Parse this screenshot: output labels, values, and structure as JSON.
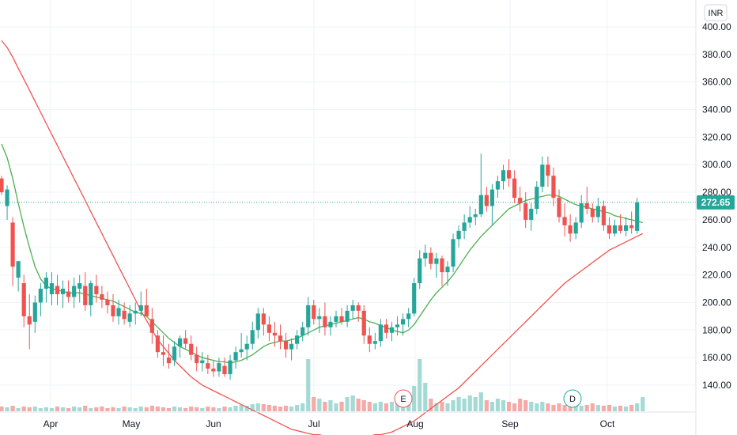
{
  "currency_label": "INR",
  "colors": {
    "up": "#26a69a",
    "down": "#ef5350",
    "vol_up": "#a4dad5",
    "vol_down": "#f7a9a7",
    "ma_fast": "#4caf50",
    "ma_slow": "#ef5350",
    "price_tag": "#26a69a"
  },
  "chart_data": {
    "type": "candlestick",
    "ylim": [
      120,
      410
    ],
    "y_ticks": [
      "400.00",
      "380.00",
      "360.00",
      "340.00",
      "320.00",
      "300.00",
      "280.00",
      "260.00",
      "240.00",
      "220.00",
      "200.00",
      "180.00",
      "160.00",
      "140.00"
    ],
    "x_ticks": [
      "Apr",
      "May",
      "Jun",
      "Jul",
      "Aug",
      "Sep",
      "Oct"
    ],
    "last_price": "272.65",
    "events": [
      {
        "label": "E",
        "date": "Jul 27"
      },
      {
        "label": "D",
        "date": "Sep 20"
      }
    ],
    "candles_ohlc": [
      [
        290,
        292,
        278,
        280
      ],
      [
        270,
        285,
        260,
        282
      ],
      [
        258,
        262,
        212,
        226
      ],
      [
        218,
        230,
        208,
        230
      ],
      [
        214,
        220,
        182,
        190
      ],
      [
        190,
        206,
        166,
        184
      ],
      [
        186,
        205,
        178,
        200
      ],
      [
        200,
        214,
        190,
        210
      ],
      [
        210,
        222,
        200,
        218
      ],
      [
        206,
        222,
        198,
        214
      ],
      [
        212,
        220,
        198,
        206
      ],
      [
        206,
        216,
        196,
        210
      ],
      [
        208,
        216,
        200,
        204
      ],
      [
        204,
        218,
        196,
        212
      ],
      [
        210,
        220,
        200,
        214
      ],
      [
        212,
        222,
        194,
        198
      ],
      [
        198,
        216,
        190,
        214
      ],
      [
        212,
        220,
        200,
        206
      ],
      [
        206,
        212,
        196,
        202
      ],
      [
        202,
        208,
        192,
        198
      ],
      [
        198,
        206,
        186,
        190
      ],
      [
        190,
        202,
        184,
        196
      ],
      [
        194,
        200,
        184,
        188
      ],
      [
        186,
        198,
        182,
        192
      ],
      [
        192,
        200,
        184,
        194
      ],
      [
        194,
        208,
        190,
        198
      ],
      [
        198,
        210,
        192,
        190
      ],
      [
        188,
        196,
        170,
        178
      ],
      [
        176,
        180,
        160,
        164
      ],
      [
        164,
        176,
        154,
        162
      ],
      [
        160,
        170,
        152,
        156
      ],
      [
        158,
        172,
        154,
        168
      ],
      [
        168,
        176,
        160,
        174
      ],
      [
        174,
        180,
        166,
        170
      ],
      [
        170,
        176,
        158,
        162
      ],
      [
        162,
        168,
        150,
        156
      ],
      [
        156,
        164,
        150,
        158
      ],
      [
        156,
        162,
        148,
        152
      ],
      [
        152,
        158,
        146,
        150
      ],
      [
        150,
        160,
        146,
        156
      ],
      [
        154,
        160,
        146,
        148
      ],
      [
        148,
        162,
        144,
        158
      ],
      [
        158,
        168,
        152,
        164
      ],
      [
        164,
        178,
        160,
        166
      ],
      [
        166,
        176,
        158,
        170
      ],
      [
        170,
        186,
        166,
        180
      ],
      [
        180,
        196,
        174,
        192
      ],
      [
        192,
        196,
        176,
        184
      ],
      [
        184,
        190,
        172,
        178
      ],
      [
        178,
        186,
        168,
        176
      ],
      [
        176,
        184,
        166,
        172
      ],
      [
        172,
        178,
        160,
        166
      ],
      [
        166,
        174,
        158,
        170
      ],
      [
        170,
        180,
        166,
        176
      ],
      [
        176,
        186,
        172,
        182
      ],
      [
        182,
        204,
        176,
        198
      ],
      [
        198,
        202,
        184,
        188
      ],
      [
        188,
        196,
        178,
        190
      ],
      [
        190,
        200,
        176,
        182
      ],
      [
        182,
        190,
        176,
        186
      ],
      [
        186,
        194,
        182,
        190
      ],
      [
        190,
        196,
        184,
        186
      ],
      [
        186,
        198,
        182,
        194
      ],
      [
        194,
        202,
        188,
        198
      ],
      [
        198,
        200,
        186,
        194
      ],
      [
        194,
        198,
        170,
        176
      ],
      [
        176,
        182,
        164,
        170
      ],
      [
        170,
        178,
        166,
        172
      ],
      [
        172,
        188,
        168,
        184
      ],
      [
        184,
        188,
        174,
        178
      ],
      [
        178,
        186,
        172,
        182
      ],
      [
        182,
        190,
        176,
        184
      ],
      [
        184,
        192,
        176,
        188
      ],
      [
        188,
        196,
        182,
        192
      ],
      [
        192,
        218,
        190,
        214
      ],
      [
        214,
        238,
        210,
        232
      ],
      [
        232,
        242,
        226,
        236
      ],
      [
        236,
        240,
        224,
        228
      ],
      [
        228,
        236,
        218,
        232
      ],
      [
        232,
        234,
        212,
        222
      ],
      [
        222,
        230,
        212,
        226
      ],
      [
        226,
        250,
        222,
        246
      ],
      [
        246,
        256,
        240,
        252
      ],
      [
        252,
        264,
        246,
        258
      ],
      [
        258,
        270,
        254,
        262
      ],
      [
        262,
        268,
        256,
        264
      ],
      [
        264,
        308,
        262,
        278
      ],
      [
        278,
        284,
        266,
        270
      ],
      [
        270,
        286,
        256,
        282
      ],
      [
        282,
        292,
        276,
        288
      ],
      [
        288,
        300,
        282,
        296
      ],
      [
        296,
        304,
        284,
        290
      ],
      [
        290,
        296,
        272,
        276
      ],
      [
        276,
        284,
        266,
        272
      ],
      [
        272,
        280,
        254,
        260
      ],
      [
        260,
        272,
        252,
        268
      ],
      [
        268,
        288,
        264,
        284
      ],
      [
        284,
        306,
        280,
        300
      ],
      [
        300,
        306,
        284,
        292
      ],
      [
        292,
        298,
        270,
        276
      ],
      [
        276,
        282,
        258,
        262
      ],
      [
        262,
        272,
        248,
        256
      ],
      [
        256,
        264,
        244,
        250
      ],
      [
        250,
        262,
        246,
        258
      ],
      [
        258,
        278,
        254,
        272
      ],
      [
        272,
        284,
        264,
        268
      ],
      [
        268,
        272,
        258,
        262
      ],
      [
        262,
        276,
        258,
        270
      ],
      [
        270,
        274,
        252,
        256
      ],
      [
        256,
        262,
        246,
        250
      ],
      [
        250,
        260,
        248,
        256
      ],
      [
        256,
        264,
        250,
        252
      ],
      [
        252,
        262,
        248,
        256
      ],
      [
        256,
        266,
        250,
        254
      ],
      [
        252,
        276,
        250,
        272.65
      ]
    ],
    "ma_fast": [
      315,
      305,
      290,
      272,
      255,
      240,
      226,
      217,
      212,
      210,
      209,
      208,
      207,
      207,
      207,
      206,
      205,
      204,
      203,
      202,
      201,
      199,
      197,
      195,
      193,
      192,
      190,
      186,
      182,
      178,
      174,
      171,
      168,
      166,
      164,
      162,
      160,
      159,
      158,
      157,
      157,
      156,
      157,
      158,
      160,
      162,
      165,
      168,
      170,
      171,
      172,
      172,
      173,
      174,
      176,
      178,
      180,
      182,
      183,
      184,
      185,
      186,
      187,
      188,
      189,
      188,
      186,
      185,
      183,
      182,
      180,
      179,
      178,
      180,
      184,
      190,
      196,
      202,
      207,
      211,
      215,
      220,
      226,
      232,
      238,
      243,
      248,
      252,
      256,
      260,
      264,
      268,
      270,
      272,
      274,
      275,
      276,
      277,
      278,
      278,
      277,
      275,
      273,
      271,
      270,
      269,
      268,
      267,
      266,
      265,
      263,
      262,
      261,
      260,
      259,
      258
    ],
    "ma_slow": [
      390,
      385,
      378,
      370,
      362,
      354,
      346,
      338,
      330,
      322,
      314,
      306,
      298,
      290,
      282,
      274,
      266,
      258,
      250,
      242,
      234,
      226,
      218,
      210,
      202,
      194,
      187,
      180,
      173,
      168,
      163,
      158,
      154,
      150,
      146,
      143,
      140,
      138,
      136,
      134,
      132,
      130,
      128,
      126,
      124,
      122,
      120,
      118,
      116,
      114,
      112,
      110,
      108,
      107,
      106,
      105,
      104,
      104,
      103,
      103,
      103,
      103,
      103,
      103,
      103,
      103,
      103,
      104,
      104,
      105,
      106,
      108,
      110,
      112,
      114,
      117,
      120,
      123,
      126,
      129,
      132,
      135,
      138,
      142,
      146,
      150,
      154,
      158,
      162,
      166,
      170,
      174,
      178,
      182,
      186,
      190,
      194,
      198,
      202,
      206,
      210,
      214,
      217,
      220,
      223,
      226,
      229,
      232,
      235,
      238,
      240,
      242,
      244,
      246,
      248,
      250
    ],
    "volume_rel": [
      0.3,
      0.25,
      0.35,
      0.2,
      0.3,
      0.25,
      0.3,
      0.2,
      0.25,
      0.2,
      0.3,
      0.25,
      0.2,
      0.3,
      0.25,
      0.35,
      0.2,
      0.25,
      0.3,
      0.2,
      0.25,
      0.2,
      0.3,
      0.25,
      0.2,
      0.3,
      0.25,
      0.35,
      0.3,
      0.25,
      0.2,
      0.3,
      0.25,
      0.2,
      0.3,
      0.25,
      0.2,
      0.3,
      0.25,
      0.2,
      0.3,
      0.25,
      0.35,
      0.4,
      0.35,
      0.45,
      0.5,
      0.45,
      0.4,
      0.35,
      0.3,
      0.35,
      0.3,
      0.4,
      0.5,
      3.3,
      0.9,
      0.8,
      0.6,
      0.7,
      0.5,
      0.6,
      0.9,
      1.0,
      0.8,
      0.7,
      0.6,
      0.5,
      0.6,
      0.5,
      0.6,
      0.7,
      0.8,
      1.0,
      1.6,
      3.3,
      1.8,
      0.8,
      0.5,
      0.6,
      0.5,
      0.7,
      0.9,
      0.8,
      1.0,
      0.9,
      1.2,
      0.7,
      0.6,
      0.8,
      0.7,
      0.6,
      0.5,
      0.8,
      0.7,
      0.6,
      0.5,
      0.6,
      0.5,
      0.4,
      0.5,
      0.4,
      0.5,
      0.4,
      0.35,
      0.4,
      0.5,
      0.4,
      0.35,
      0.4,
      0.3,
      0.35,
      0.3,
      0.4,
      0.5,
      0.9
    ]
  }
}
